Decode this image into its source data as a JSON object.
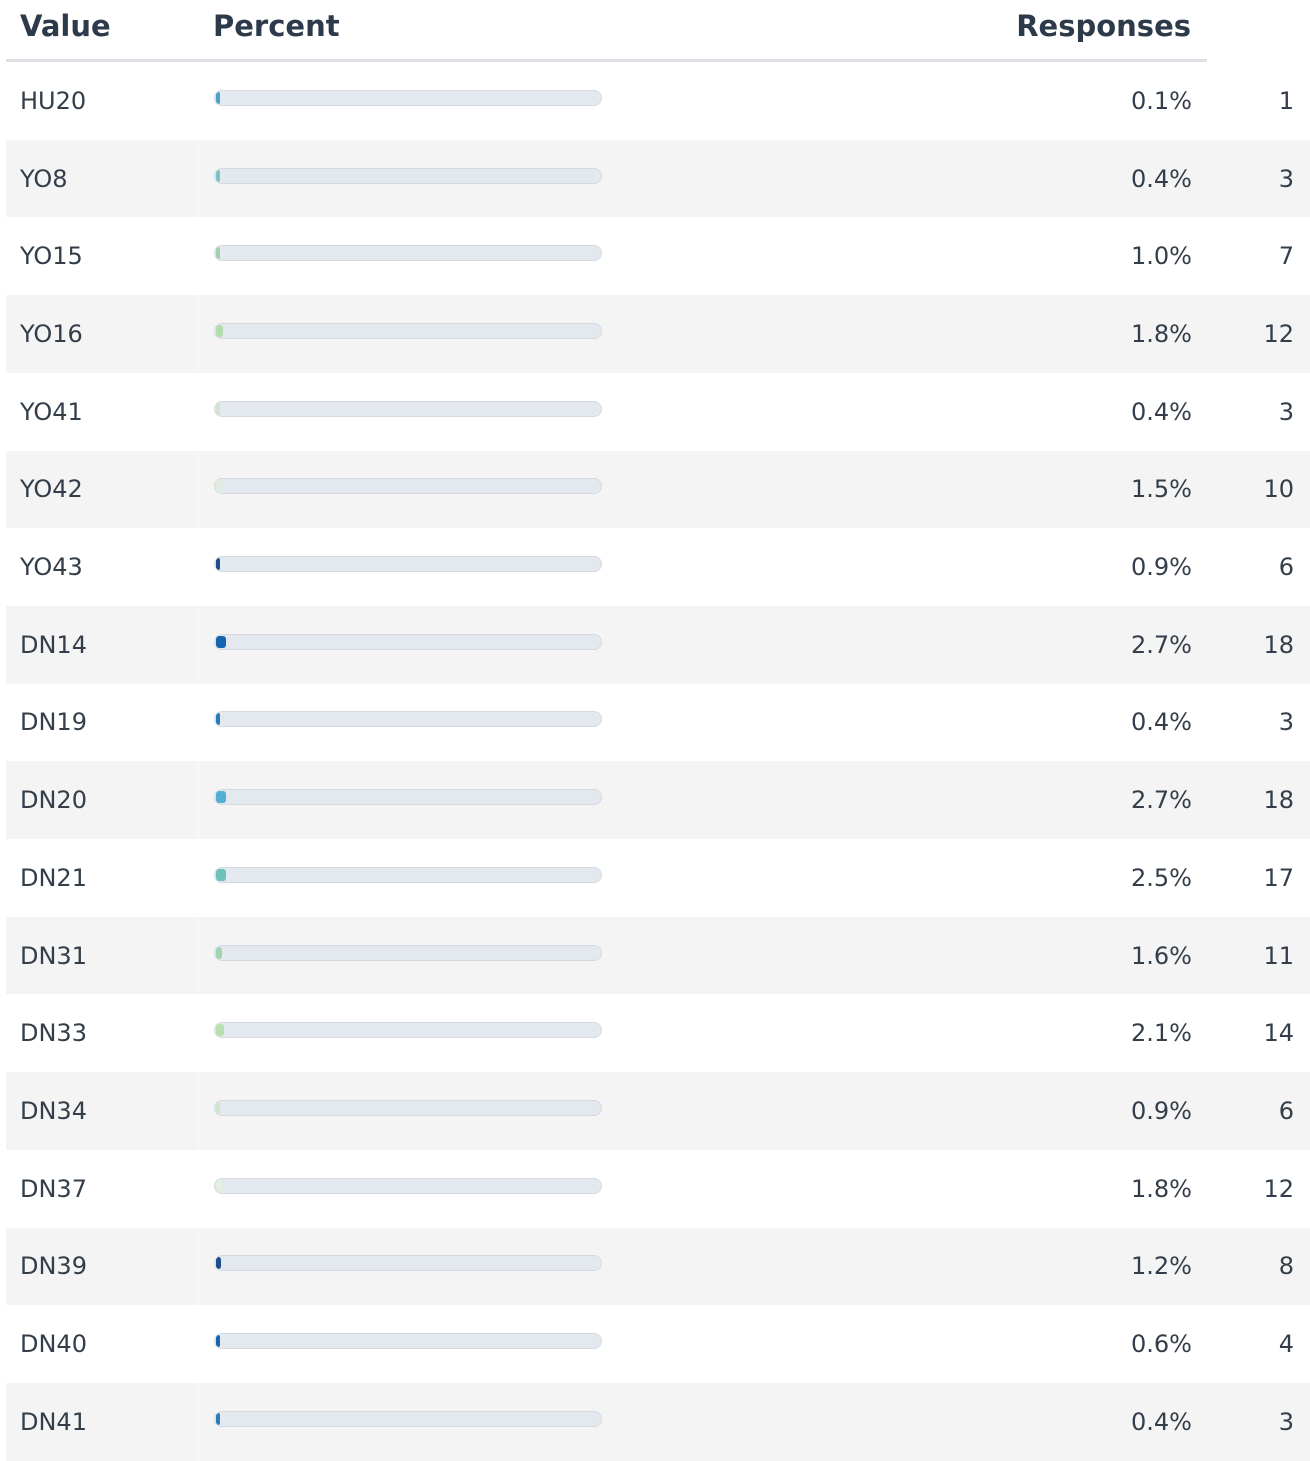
{
  "table": {
    "columns": [
      "Value",
      "Percent",
      "Responses"
    ],
    "rows": [
      {
        "value": "HU20",
        "percent": 0.1,
        "percent_label": "0.1%",
        "responses": 1,
        "color": "#4aa3c4"
      },
      {
        "value": "YO8",
        "percent": 0.4,
        "percent_label": "0.4%",
        "responses": 3,
        "color": "#7cc3c6"
      },
      {
        "value": "YO15",
        "percent": 1.0,
        "percent_label": "1.0%",
        "responses": 7,
        "color": "#9fd1b0"
      },
      {
        "value": "YO16",
        "percent": 1.8,
        "percent_label": "1.8%",
        "responses": 12,
        "color": "#b3ddb0"
      },
      {
        "value": "YO41",
        "percent": 0.4,
        "percent_label": "0.4%",
        "responses": 3,
        "color": "#cfe5cc"
      },
      {
        "value": "YO42",
        "percent": 1.5,
        "percent_label": "1.5%",
        "responses": 10,
        "color": "#e0eedd"
      },
      {
        "value": "YO43",
        "percent": 0.9,
        "percent_label": "0.9%",
        "responses": 6,
        "color": "#1f4e8c"
      },
      {
        "value": "DN14",
        "percent": 2.7,
        "percent_label": "2.7%",
        "responses": 18,
        "color": "#1565b0"
      },
      {
        "value": "DN19",
        "percent": 0.4,
        "percent_label": "0.4%",
        "responses": 3,
        "color": "#2a7db8"
      },
      {
        "value": "DN20",
        "percent": 2.7,
        "percent_label": "2.7%",
        "responses": 18,
        "color": "#4fb0d0"
      },
      {
        "value": "DN21",
        "percent": 2.5,
        "percent_label": "2.5%",
        "responses": 17,
        "color": "#6cc1b8"
      },
      {
        "value": "DN31",
        "percent": 1.6,
        "percent_label": "1.6%",
        "responses": 11,
        "color": "#9fd4b0"
      },
      {
        "value": "DN33",
        "percent": 2.1,
        "percent_label": "2.1%",
        "responses": 14,
        "color": "#b8dfb0"
      },
      {
        "value": "DN34",
        "percent": 0.9,
        "percent_label": "0.9%",
        "responses": 6,
        "color": "#cde7cc"
      },
      {
        "value": "DN37",
        "percent": 1.8,
        "percent_label": "1.8%",
        "responses": 12,
        "color": "#e3efe0"
      },
      {
        "value": "DN39",
        "percent": 1.2,
        "percent_label": "1.2%",
        "responses": 8,
        "color": "#1f4e8c"
      },
      {
        "value": "DN40",
        "percent": 0.6,
        "percent_label": "0.6%",
        "responses": 4,
        "color": "#1565b0"
      },
      {
        "value": "DN41",
        "percent": 0.4,
        "percent_label": "0.4%",
        "responses": 3,
        "color": "#2a7db8"
      }
    ]
  }
}
